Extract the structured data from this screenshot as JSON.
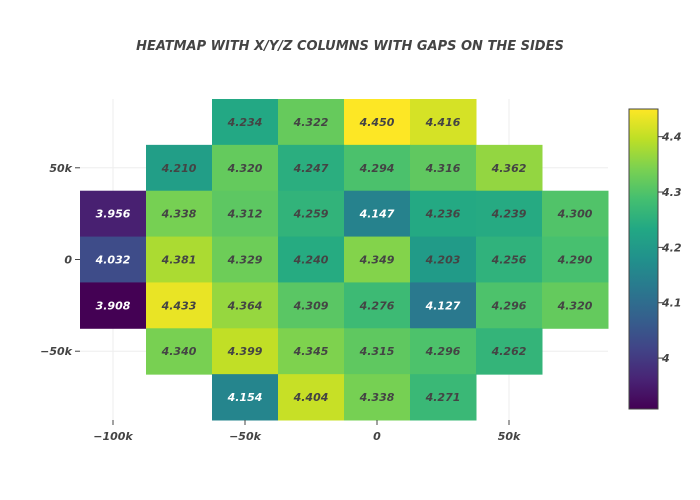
{
  "chart_data": {
    "type": "heatmap",
    "title": "HEATMAP WITH X/Y/Z COLUMNS WITH GAPS ON THE SIDES",
    "xlabel": "",
    "ylabel": "",
    "x_categories": [
      -100000,
      -75000,
      -50000,
      -25000,
      0,
      25000,
      50000,
      75000
    ],
    "y_categories": [
      75000,
      50000,
      25000,
      0,
      -25000,
      -50000,
      -75000
    ],
    "x_ticks": [
      {
        "value": -100000,
        "label": "−100k"
      },
      {
        "value": -50000,
        "label": "−50k"
      },
      {
        "value": 0,
        "label": "0"
      },
      {
        "value": 50000,
        "label": "50k"
      }
    ],
    "y_ticks": [
      {
        "value": 50000,
        "label": "50k"
      },
      {
        "value": 0,
        "label": "0"
      },
      {
        "value": -50000,
        "label": "−50k"
      }
    ],
    "z": [
      [
        null,
        null,
        4.234,
        4.322,
        4.45,
        4.416,
        null,
        null
      ],
      [
        null,
        4.21,
        4.32,
        4.247,
        4.294,
        4.316,
        4.362,
        null
      ],
      [
        3.956,
        4.338,
        4.312,
        4.259,
        4.147,
        4.236,
        4.239,
        4.3
      ],
      [
        4.032,
        4.381,
        4.329,
        4.24,
        4.349,
        4.203,
        4.256,
        4.29
      ],
      [
        3.908,
        4.433,
        4.364,
        4.309,
        4.276,
        4.127,
        4.296,
        4.32
      ],
      [
        null,
        4.34,
        4.399,
        4.345,
        4.315,
        4.296,
        4.262,
        null
      ],
      [
        null,
        null,
        4.154,
        4.404,
        4.338,
        4.271,
        null,
        null
      ]
    ],
    "text_labels": [
      [
        null,
        null,
        "4.234",
        "4.322",
        "4.450",
        "4.416",
        null,
        null
      ],
      [
        null,
        "4.210",
        "4.320",
        "4.247",
        "4.294",
        "4.316",
        "4.362",
        null
      ],
      [
        "3.956",
        "4.338",
        "4.312",
        "4.259",
        "4.147",
        "4.236",
        "4.239",
        "4.300"
      ],
      [
        "4.032",
        "4.381",
        "4.329",
        "4.240",
        "4.349",
        "4.203",
        "4.256",
        "4.290"
      ],
      [
        "3.908",
        "4.433",
        "4.364",
        "4.309",
        "4.276",
        "4.127",
        "4.296",
        "4.320"
      ],
      [
        null,
        "4.340",
        "4.399",
        "4.345",
        "4.315",
        "4.296",
        "4.262",
        null
      ],
      [
        null,
        null,
        "4.154",
        "4.404",
        "4.338",
        "4.271",
        null,
        null
      ]
    ],
    "zmin": 3.908,
    "zmax": 4.45,
    "colorscale": "viridis",
    "colorbar_ticks": [
      {
        "value": 4.0,
        "label": "4"
      },
      {
        "value": 4.1,
        "label": "4.1"
      },
      {
        "value": 4.2,
        "label": "4.2"
      },
      {
        "value": 4.3,
        "label": "4.3"
      },
      {
        "value": 4.4,
        "label": "4.4"
      }
    ],
    "grid": true,
    "legend": "colorbar-right"
  }
}
